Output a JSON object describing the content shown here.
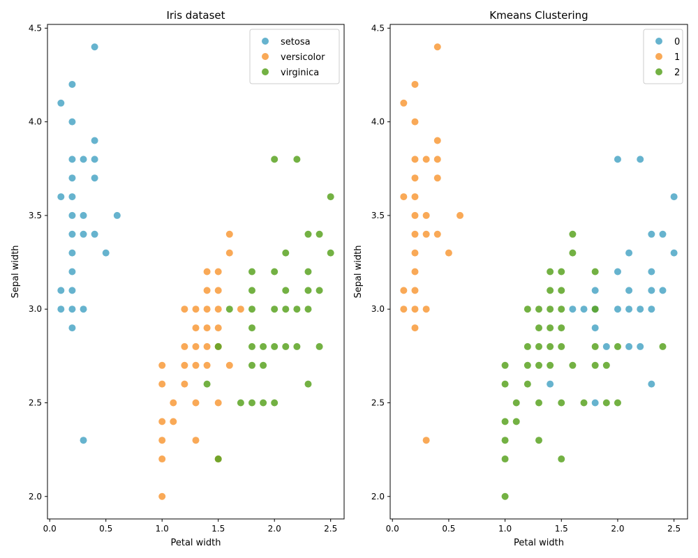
{
  "chart_data": [
    {
      "type": "scatter",
      "title": "Iris dataset",
      "xlabel": "Petal width",
      "ylabel": "Sepal width",
      "xlim": [
        -0.02,
        2.62
      ],
      "ylim": [
        1.88,
        4.52
      ],
      "xticks": [
        "0.0",
        "0.5",
        "1.0",
        "1.5",
        "2.0",
        "2.5"
      ],
      "yticks": [
        "2.0",
        "2.5",
        "3.0",
        "3.5",
        "4.0",
        "4.5"
      ],
      "legend_position": "top-right",
      "series": [
        {
          "name": "setosa",
          "color": "#4BA6C6",
          "points": [
            [
              0.4,
              4.4
            ],
            [
              0.2,
              4.2
            ],
            [
              0.1,
              4.1
            ],
            [
              0.2,
              4.0
            ],
            [
              0.4,
              3.9
            ],
            [
              0.2,
              3.8
            ],
            [
              0.3,
              3.8
            ],
            [
              0.4,
              3.8
            ],
            [
              0.2,
              3.7
            ],
            [
              0.4,
              3.7
            ],
            [
              0.1,
              3.6
            ],
            [
              0.2,
              3.6
            ],
            [
              0.2,
              3.5
            ],
            [
              0.3,
              3.5
            ],
            [
              0.6,
              3.5
            ],
            [
              0.2,
              3.4
            ],
            [
              0.3,
              3.4
            ],
            [
              0.4,
              3.4
            ],
            [
              0.2,
              3.3
            ],
            [
              0.5,
              3.3
            ],
            [
              0.2,
              3.2
            ],
            [
              0.1,
              3.1
            ],
            [
              0.2,
              3.1
            ],
            [
              0.1,
              3.0
            ],
            [
              0.2,
              3.0
            ],
            [
              0.3,
              3.0
            ],
            [
              0.2,
              2.9
            ],
            [
              0.3,
              2.3
            ]
          ]
        },
        {
          "name": "versicolor",
          "color": "#F89A3A",
          "points": [
            [
              1.6,
              3.4
            ],
            [
              1.6,
              3.3
            ],
            [
              1.4,
              3.2
            ],
            [
              1.5,
              3.2
            ],
            [
              1.4,
              3.1
            ],
            [
              1.5,
              3.1
            ],
            [
              1.2,
              3.0
            ],
            [
              1.3,
              3.0
            ],
            [
              1.4,
              3.0
            ],
            [
              1.5,
              3.0
            ],
            [
              1.7,
              3.0
            ],
            [
              1.3,
              2.9
            ],
            [
              1.4,
              2.9
            ],
            [
              1.5,
              2.9
            ],
            [
              1.2,
              2.8
            ],
            [
              1.3,
              2.8
            ],
            [
              1.4,
              2.8
            ],
            [
              1.5,
              2.8
            ],
            [
              1.2,
              2.7
            ],
            [
              1.3,
              2.7
            ],
            [
              1.4,
              2.7
            ],
            [
              1.6,
              2.7
            ],
            [
              1.0,
              2.7
            ],
            [
              1.0,
              2.6
            ],
            [
              1.2,
              2.6
            ],
            [
              1.1,
              2.5
            ],
            [
              1.3,
              2.5
            ],
            [
              1.5,
              2.5
            ],
            [
              1.0,
              2.4
            ],
            [
              1.1,
              2.4
            ],
            [
              1.0,
              2.3
            ],
            [
              1.3,
              2.3
            ],
            [
              1.0,
              2.2
            ],
            [
              1.5,
              2.2
            ],
            [
              1.0,
              2.0
            ]
          ]
        },
        {
          "name": "virginica",
          "color": "#5BA322",
          "points": [
            [
              2.0,
              3.8
            ],
            [
              2.2,
              3.8
            ],
            [
              2.5,
              3.6
            ],
            [
              2.3,
              3.4
            ],
            [
              2.4,
              3.4
            ],
            [
              2.1,
              3.3
            ],
            [
              2.5,
              3.3
            ],
            [
              1.8,
              3.2
            ],
            [
              2.0,
              3.2
            ],
            [
              2.3,
              3.2
            ],
            [
              1.8,
              3.1
            ],
            [
              2.1,
              3.1
            ],
            [
              2.3,
              3.1
            ],
            [
              2.4,
              3.1
            ],
            [
              1.6,
              3.0
            ],
            [
              1.8,
              3.0
            ],
            [
              2.0,
              3.0
            ],
            [
              2.1,
              3.0
            ],
            [
              2.2,
              3.0
            ],
            [
              2.3,
              3.0
            ],
            [
              1.8,
              2.9
            ],
            [
              1.5,
              2.8
            ],
            [
              1.8,
              2.8
            ],
            [
              1.9,
              2.8
            ],
            [
              2.0,
              2.8
            ],
            [
              2.1,
              2.8
            ],
            [
              2.2,
              2.8
            ],
            [
              2.4,
              2.8
            ],
            [
              1.8,
              2.7
            ],
            [
              1.9,
              2.7
            ],
            [
              1.4,
              2.6
            ],
            [
              2.3,
              2.6
            ],
            [
              1.7,
              2.5
            ],
            [
              1.8,
              2.5
            ],
            [
              1.9,
              2.5
            ],
            [
              2.0,
              2.5
            ],
            [
              1.5,
              2.2
            ]
          ]
        }
      ]
    },
    {
      "type": "scatter",
      "title": "Kmeans Clustering",
      "xlabel": "Petal width",
      "ylabel": "Sepal width",
      "xlim": [
        -0.02,
        2.62
      ],
      "ylim": [
        1.88,
        4.52
      ],
      "xticks": [
        "0.0",
        "0.5",
        "1.0",
        "1.5",
        "2.0",
        "2.5"
      ],
      "yticks": [
        "2.0",
        "2.5",
        "3.0",
        "3.5",
        "4.0",
        "4.5"
      ],
      "legend_position": "top-right",
      "series": [
        {
          "name": "0",
          "color": "#4BA6C6",
          "points": [
            [
              2.0,
              3.8
            ],
            [
              2.2,
              3.8
            ],
            [
              2.5,
              3.6
            ],
            [
              2.3,
              3.4
            ],
            [
              2.4,
              3.4
            ],
            [
              2.1,
              3.3
            ],
            [
              2.5,
              3.3
            ],
            [
              2.0,
              3.2
            ],
            [
              2.3,
              3.2
            ],
            [
              1.8,
              3.1
            ],
            [
              2.1,
              3.1
            ],
            [
              2.3,
              3.1
            ],
            [
              2.4,
              3.1
            ],
            [
              1.6,
              3.0
            ],
            [
              1.7,
              3.0
            ],
            [
              1.8,
              3.0
            ],
            [
              2.0,
              3.0
            ],
            [
              2.1,
              3.0
            ],
            [
              2.2,
              3.0
            ],
            [
              2.3,
              3.0
            ],
            [
              1.8,
              2.9
            ],
            [
              1.9,
              2.8
            ],
            [
              2.1,
              2.8
            ],
            [
              2.2,
              2.8
            ],
            [
              1.4,
              2.6
            ],
            [
              2.3,
              2.6
            ],
            [
              1.8,
              2.5
            ]
          ]
        },
        {
          "name": "1",
          "color": "#F89A3A",
          "points": [
            [
              0.4,
              4.4
            ],
            [
              0.2,
              4.2
            ],
            [
              0.1,
              4.1
            ],
            [
              0.2,
              4.0
            ],
            [
              0.4,
              3.9
            ],
            [
              0.2,
              3.8
            ],
            [
              0.3,
              3.8
            ],
            [
              0.4,
              3.8
            ],
            [
              0.2,
              3.7
            ],
            [
              0.4,
              3.7
            ],
            [
              0.1,
              3.6
            ],
            [
              0.2,
              3.6
            ],
            [
              0.2,
              3.5
            ],
            [
              0.3,
              3.5
            ],
            [
              0.6,
              3.5
            ],
            [
              0.2,
              3.4
            ],
            [
              0.3,
              3.4
            ],
            [
              0.4,
              3.4
            ],
            [
              0.2,
              3.3
            ],
            [
              0.5,
              3.3
            ],
            [
              0.2,
              3.2
            ],
            [
              0.1,
              3.1
            ],
            [
              0.2,
              3.1
            ],
            [
              0.1,
              3.0
            ],
            [
              0.2,
              3.0
            ],
            [
              0.3,
              3.0
            ],
            [
              0.2,
              2.9
            ],
            [
              0.3,
              2.3
            ]
          ]
        },
        {
          "name": "2",
          "color": "#5BA322",
          "points": [
            [
              1.6,
              3.4
            ],
            [
              1.6,
              3.3
            ],
            [
              1.4,
              3.2
            ],
            [
              1.5,
              3.2
            ],
            [
              1.8,
              3.2
            ],
            [
              1.4,
              3.1
            ],
            [
              1.5,
              3.1
            ],
            [
              1.2,
              3.0
            ],
            [
              1.3,
              3.0
            ],
            [
              1.4,
              3.0
            ],
            [
              1.5,
              3.0
            ],
            [
              1.8,
              3.0
            ],
            [
              1.3,
              2.9
            ],
            [
              1.4,
              2.9
            ],
            [
              1.5,
              2.9
            ],
            [
              1.2,
              2.8
            ],
            [
              1.3,
              2.8
            ],
            [
              1.4,
              2.8
            ],
            [
              1.5,
              2.8
            ],
            [
              1.8,
              2.8
            ],
            [
              2.0,
              2.8
            ],
            [
              2.4,
              2.8
            ],
            [
              1.0,
              2.7
            ],
            [
              1.2,
              2.7
            ],
            [
              1.3,
              2.7
            ],
            [
              1.4,
              2.7
            ],
            [
              1.6,
              2.7
            ],
            [
              1.8,
              2.7
            ],
            [
              1.9,
              2.7
            ],
            [
              1.0,
              2.6
            ],
            [
              1.2,
              2.6
            ],
            [
              1.1,
              2.5
            ],
            [
              1.3,
              2.5
            ],
            [
              1.5,
              2.5
            ],
            [
              1.7,
              2.5
            ],
            [
              1.9,
              2.5
            ],
            [
              2.0,
              2.5
            ],
            [
              1.0,
              2.4
            ],
            [
              1.1,
              2.4
            ],
            [
              1.0,
              2.3
            ],
            [
              1.3,
              2.3
            ],
            [
              1.0,
              2.2
            ],
            [
              1.5,
              2.2
            ],
            [
              1.0,
              2.0
            ]
          ]
        }
      ]
    }
  ]
}
